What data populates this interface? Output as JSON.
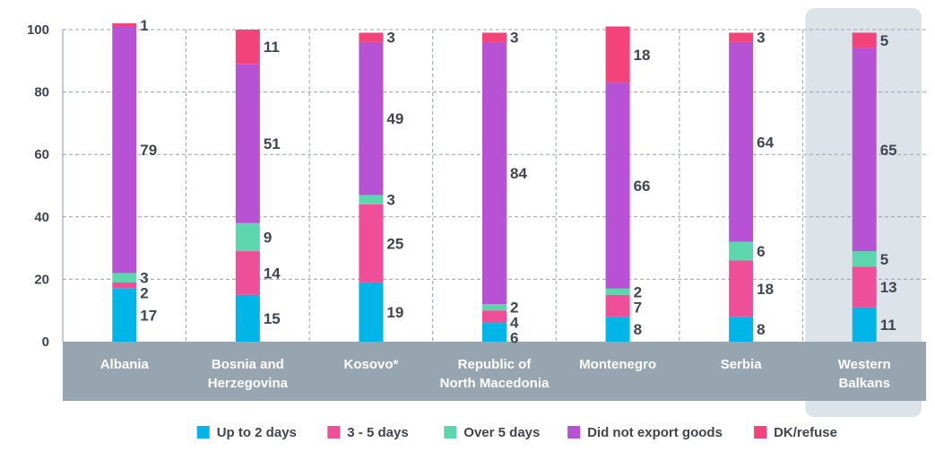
{
  "chart_data": {
    "type": "bar",
    "stacked": true,
    "categories": [
      "Albania",
      "Bosnia and\nHerzegovina",
      "Kosovo*",
      "Republic of\nNorth Macedonia",
      "Montenegro",
      "Serbia",
      "Western\nBalkans"
    ],
    "series": [
      {
        "name": "Up to 2 days",
        "color": "#00b5e7",
        "values": [
          17,
          15,
          19,
          6,
          8,
          8,
          11
        ]
      },
      {
        "name": "3 - 5 days",
        "color": "#ee4f98",
        "values": [
          2,
          14,
          25,
          4,
          7,
          18,
          13
        ]
      },
      {
        "name": "Over 5 days",
        "color": "#5cd6ad",
        "values": [
          3,
          9,
          3,
          2,
          2,
          6,
          5
        ]
      },
      {
        "name": "Did not export goods",
        "color": "#b652d3",
        "values": [
          79,
          51,
          49,
          84,
          66,
          64,
          65
        ]
      },
      {
        "name": "DK/refuse",
        "color": "#f2447a",
        "values": [
          1,
          11,
          3,
          3,
          18,
          3,
          5
        ]
      }
    ],
    "ylim": [
      0,
      100
    ],
    "yticks": [
      0,
      20,
      40,
      60,
      80,
      100
    ],
    "grid": true,
    "legend_position": "bottom",
    "highlighted_category": "Western\nBalkans",
    "colors": {
      "axis_band": "#97a5b1",
      "highlight_panel": "#dce4ea",
      "grid": "#9aa4ad",
      "text": "#3f4650"
    }
  }
}
